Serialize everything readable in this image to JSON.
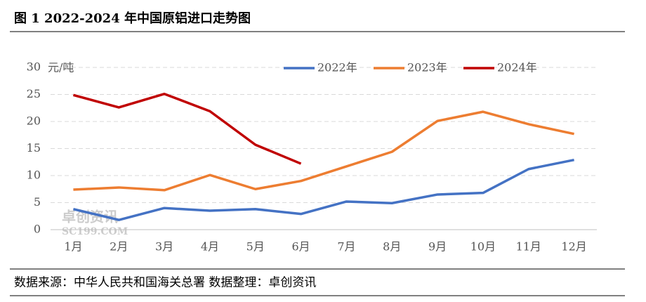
{
  "chart_data": {
    "type": "line",
    "title": "图 1 2022-2024 年中国原铝进口走势图",
    "y_unit": "元/吨",
    "categories": [
      "1月",
      "2月",
      "3月",
      "4月",
      "5月",
      "6月",
      "7月",
      "8月",
      "9月",
      "10月",
      "11月",
      "12月"
    ],
    "series": [
      {
        "name": "2022年",
        "color": "#4472c4",
        "values": [
          3.8,
          1.8,
          4.0,
          3.5,
          3.8,
          2.9,
          5.2,
          4.9,
          6.5,
          6.8,
          11.2,
          12.9
        ]
      },
      {
        "name": "2023年",
        "color": "#ed7d31",
        "values": [
          7.4,
          7.8,
          7.3,
          10.1,
          7.5,
          9.0,
          11.7,
          14.4,
          20.1,
          21.8,
          19.5,
          17.7
        ]
      },
      {
        "name": "2024年",
        "color": "#c00000",
        "values": [
          24.9,
          22.6,
          25.1,
          21.9,
          15.7,
          12.2,
          null,
          null,
          null,
          null,
          null,
          null
        ]
      }
    ],
    "ylim": [
      0,
      30
    ],
    "yticks": [
      0,
      5,
      10,
      15,
      20,
      25,
      30
    ],
    "grid": true,
    "legend": "top",
    "watermark": [
      "卓创资讯",
      "SC199.COM"
    ],
    "source": "数据来源：中华人民共和国海关总署 数据整理：卓创资讯"
  }
}
